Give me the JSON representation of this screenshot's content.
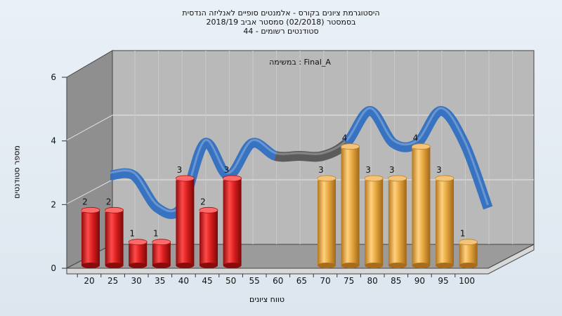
{
  "header": {
    "title_line1": "היסטוגרמת ציונים בקורס - אלמנטים סופיים לאנליזה הנדסית",
    "title_line2": "בסמסטר  (02/2018)  סמסטר אביב 2018/19",
    "title_line3": "סטודנטים רשומים - 44"
  },
  "chart_data": {
    "type": "bar",
    "annotation": "במשימה : Final_A",
    "xlabel": "טווח ציונים",
    "ylabel": "מספר סטודנטים",
    "categories": [
      "20",
      "25",
      "30",
      "35",
      "40",
      "45",
      "50",
      "55",
      "60",
      "65",
      "70",
      "75",
      "80",
      "85",
      "90",
      "95",
      "100"
    ],
    "values": [
      2,
      2,
      1,
      1,
      3,
      2,
      3,
      0,
      0,
      0,
      3,
      4,
      3,
      3,
      4,
      3,
      1
    ],
    "data_labels": [
      "2",
      "2",
      "1",
      "1",
      "3",
      "2",
      "3",
      "",
      "",
      "",
      "3",
      "4",
      "3",
      "3",
      "4",
      "3",
      "1"
    ],
    "ylim": [
      0,
      6
    ],
    "yticks": [
      "0",
      "2",
      "4",
      "6"
    ],
    "grid": true,
    "colors": {
      "fail": "#d81e1e",
      "pass": "#e5a640",
      "trend": "#2f6fc1",
      "trend_flat": "#555555"
    }
  }
}
